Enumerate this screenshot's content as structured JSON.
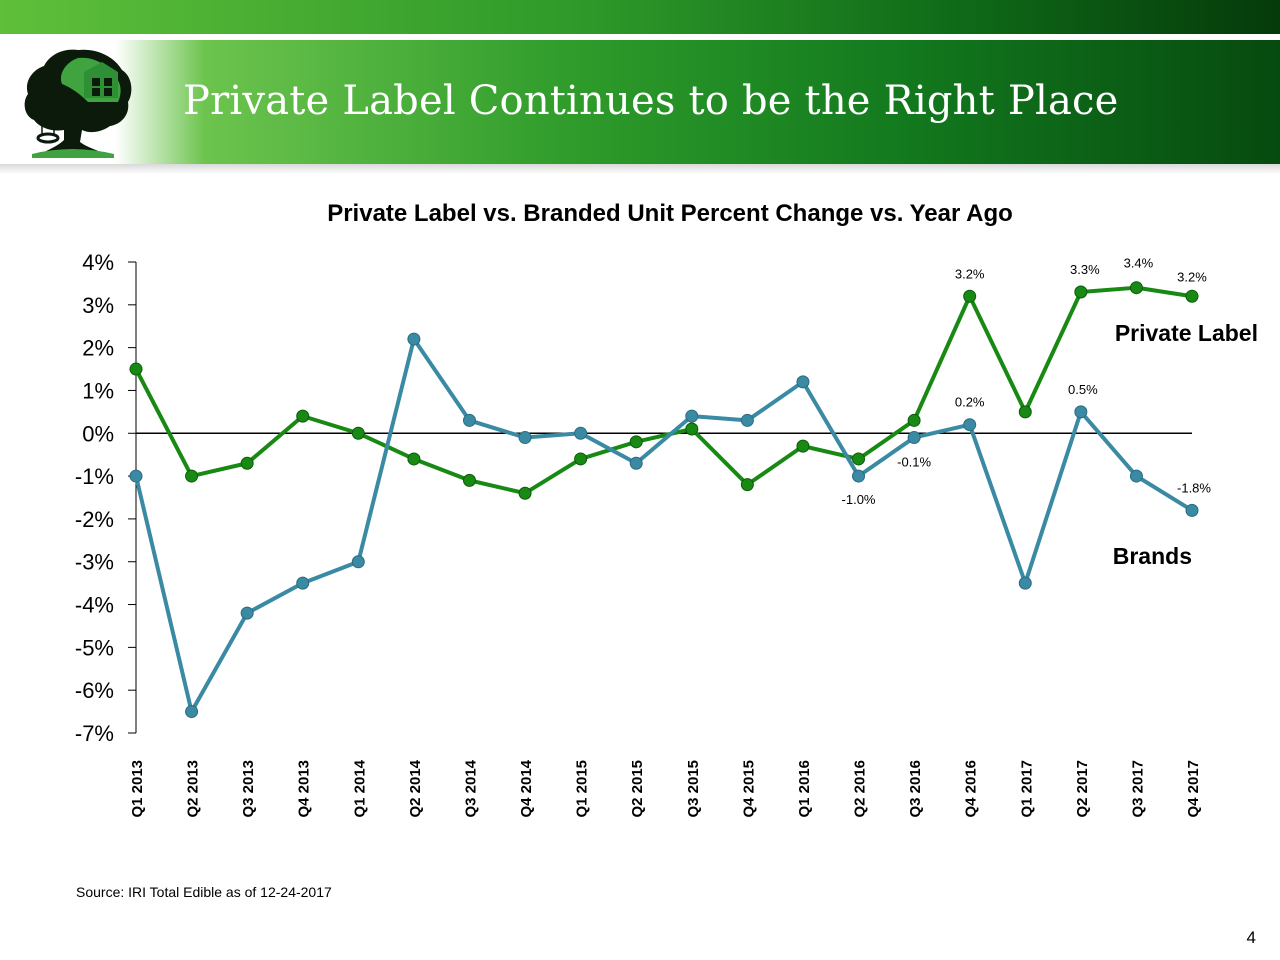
{
  "slide": {
    "title": "Private Label Continues to be the Right Place",
    "source": "Source: IRI Total Edible as of 12-24-2017",
    "page_number": "4",
    "colors": {
      "private_label": "#188a14",
      "brands": "#3a8aa4"
    }
  },
  "chart_data": {
    "type": "line",
    "title": "Private Label vs. Branded Unit Percent Change vs. Year Ago",
    "xlabel": "",
    "ylabel": "",
    "ylim": [
      -7,
      4
    ],
    "yticks": [
      "4%",
      "3%",
      "2%",
      "1%",
      "0%",
      "-1%",
      "-2%",
      "-3%",
      "-4%",
      "-5%",
      "-6%",
      "-7%"
    ],
    "grid": false,
    "categories": [
      "Q1 2013",
      "Q2 2013",
      "Q3 2013",
      "Q4 2013",
      "Q1 2014",
      "Q2 2014",
      "Q3 2014",
      "Q4 2014",
      "Q1 2015",
      "Q2 2015",
      "Q3 2015",
      "Q4 2015",
      "Q1 2016",
      "Q2 2016",
      "Q3 2016",
      "Q4 2016",
      "Q1 2017",
      "Q2 2017",
      "Q3 2017",
      "Q4 2017"
    ],
    "series": [
      {
        "name": "Private Label",
        "color": "#188a14",
        "values": [
          1.5,
          -1.0,
          -0.7,
          0.4,
          0.0,
          -0.6,
          -1.1,
          -1.4,
          -0.6,
          -0.2,
          0.1,
          -1.2,
          -0.3,
          -0.6,
          0.3,
          3.2,
          0.5,
          3.3,
          3.4,
          3.2
        ],
        "labels": [
          {
            "index": 15,
            "text": "3.2%"
          },
          {
            "index": 17,
            "text": "3.3%"
          },
          {
            "index": 18,
            "text": "3.4%"
          },
          {
            "index": 19,
            "text": "3.2%"
          }
        ]
      },
      {
        "name": "Brands",
        "color": "#3a8aa4",
        "values": [
          -1.0,
          -6.5,
          -4.2,
          -3.5,
          -3.0,
          2.2,
          0.3,
          -0.1,
          0.0,
          -0.7,
          0.4,
          0.3,
          1.2,
          -1.0,
          -0.1,
          0.2,
          -3.5,
          0.5,
          -1.0,
          -1.8
        ],
        "labels": [
          {
            "index": 13,
            "text": "-1.0%"
          },
          {
            "index": 14,
            "text": "-0.1%"
          },
          {
            "index": 15,
            "text": "0.2%"
          },
          {
            "index": 17,
            "text": "0.5%"
          },
          {
            "index": 19,
            "text": "-1.8%"
          }
        ]
      }
    ]
  }
}
